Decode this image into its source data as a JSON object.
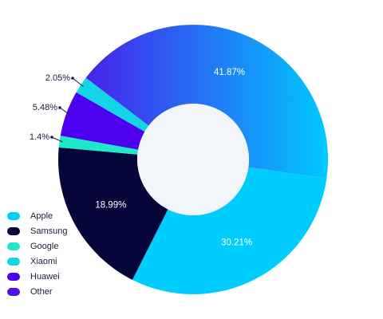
{
  "chart_data": {
    "type": "donut",
    "categories": [
      "Apple",
      "Samsung",
      "Google",
      "Xiaomi",
      "Huawei",
      "Other"
    ],
    "values": [
      30.21,
      18.99,
      1.4,
      2.05,
      5.48,
      41.87
    ],
    "value_labels": [
      "30.21%",
      "18.99%",
      "1.4%",
      "2.05%",
      "5.48%",
      "41.87%"
    ],
    "colors": [
      "#00cdfd",
      "#05053a",
      "#1ee8c8",
      "#12d6e8",
      "#4c00ee",
      [
        "#4e10e8",
        "#00c8ff"
      ]
    ]
  }
}
